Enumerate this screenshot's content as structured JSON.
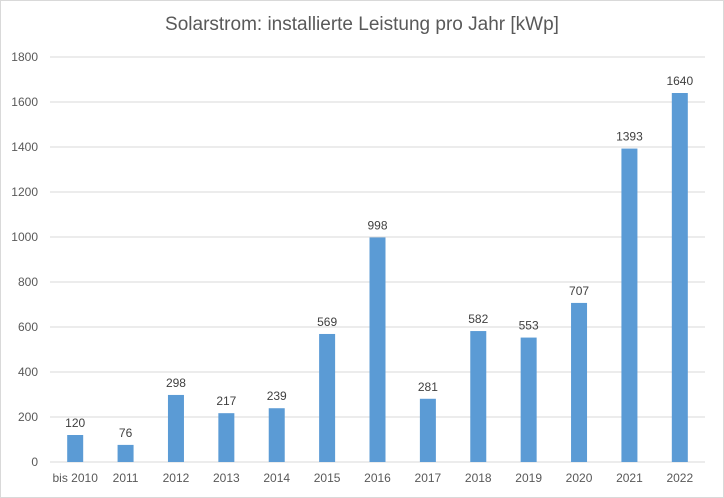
{
  "chart_data": {
    "type": "bar",
    "title": "Solarstrom: installierte Leistung pro Jahr [kWp]",
    "xlabel": "",
    "ylabel": "",
    "categories": [
      "bis 2010",
      "2011",
      "2012",
      "2013",
      "2014",
      "2015",
      "2016",
      "2017",
      "2018",
      "2019",
      "2020",
      "2021",
      "2022"
    ],
    "values": [
      120,
      76,
      298,
      217,
      239,
      569,
      998,
      281,
      582,
      553,
      707,
      1393,
      1640
    ],
    "ylim": [
      0,
      1800
    ],
    "yticks": [
      0,
      200,
      400,
      600,
      800,
      1000,
      1200,
      1400,
      1600,
      1800
    ],
    "grid": true,
    "legend": "none",
    "bar_color": "#5b9bd5",
    "grid_color": "#d9d9d9",
    "text_color": "#595959"
  }
}
